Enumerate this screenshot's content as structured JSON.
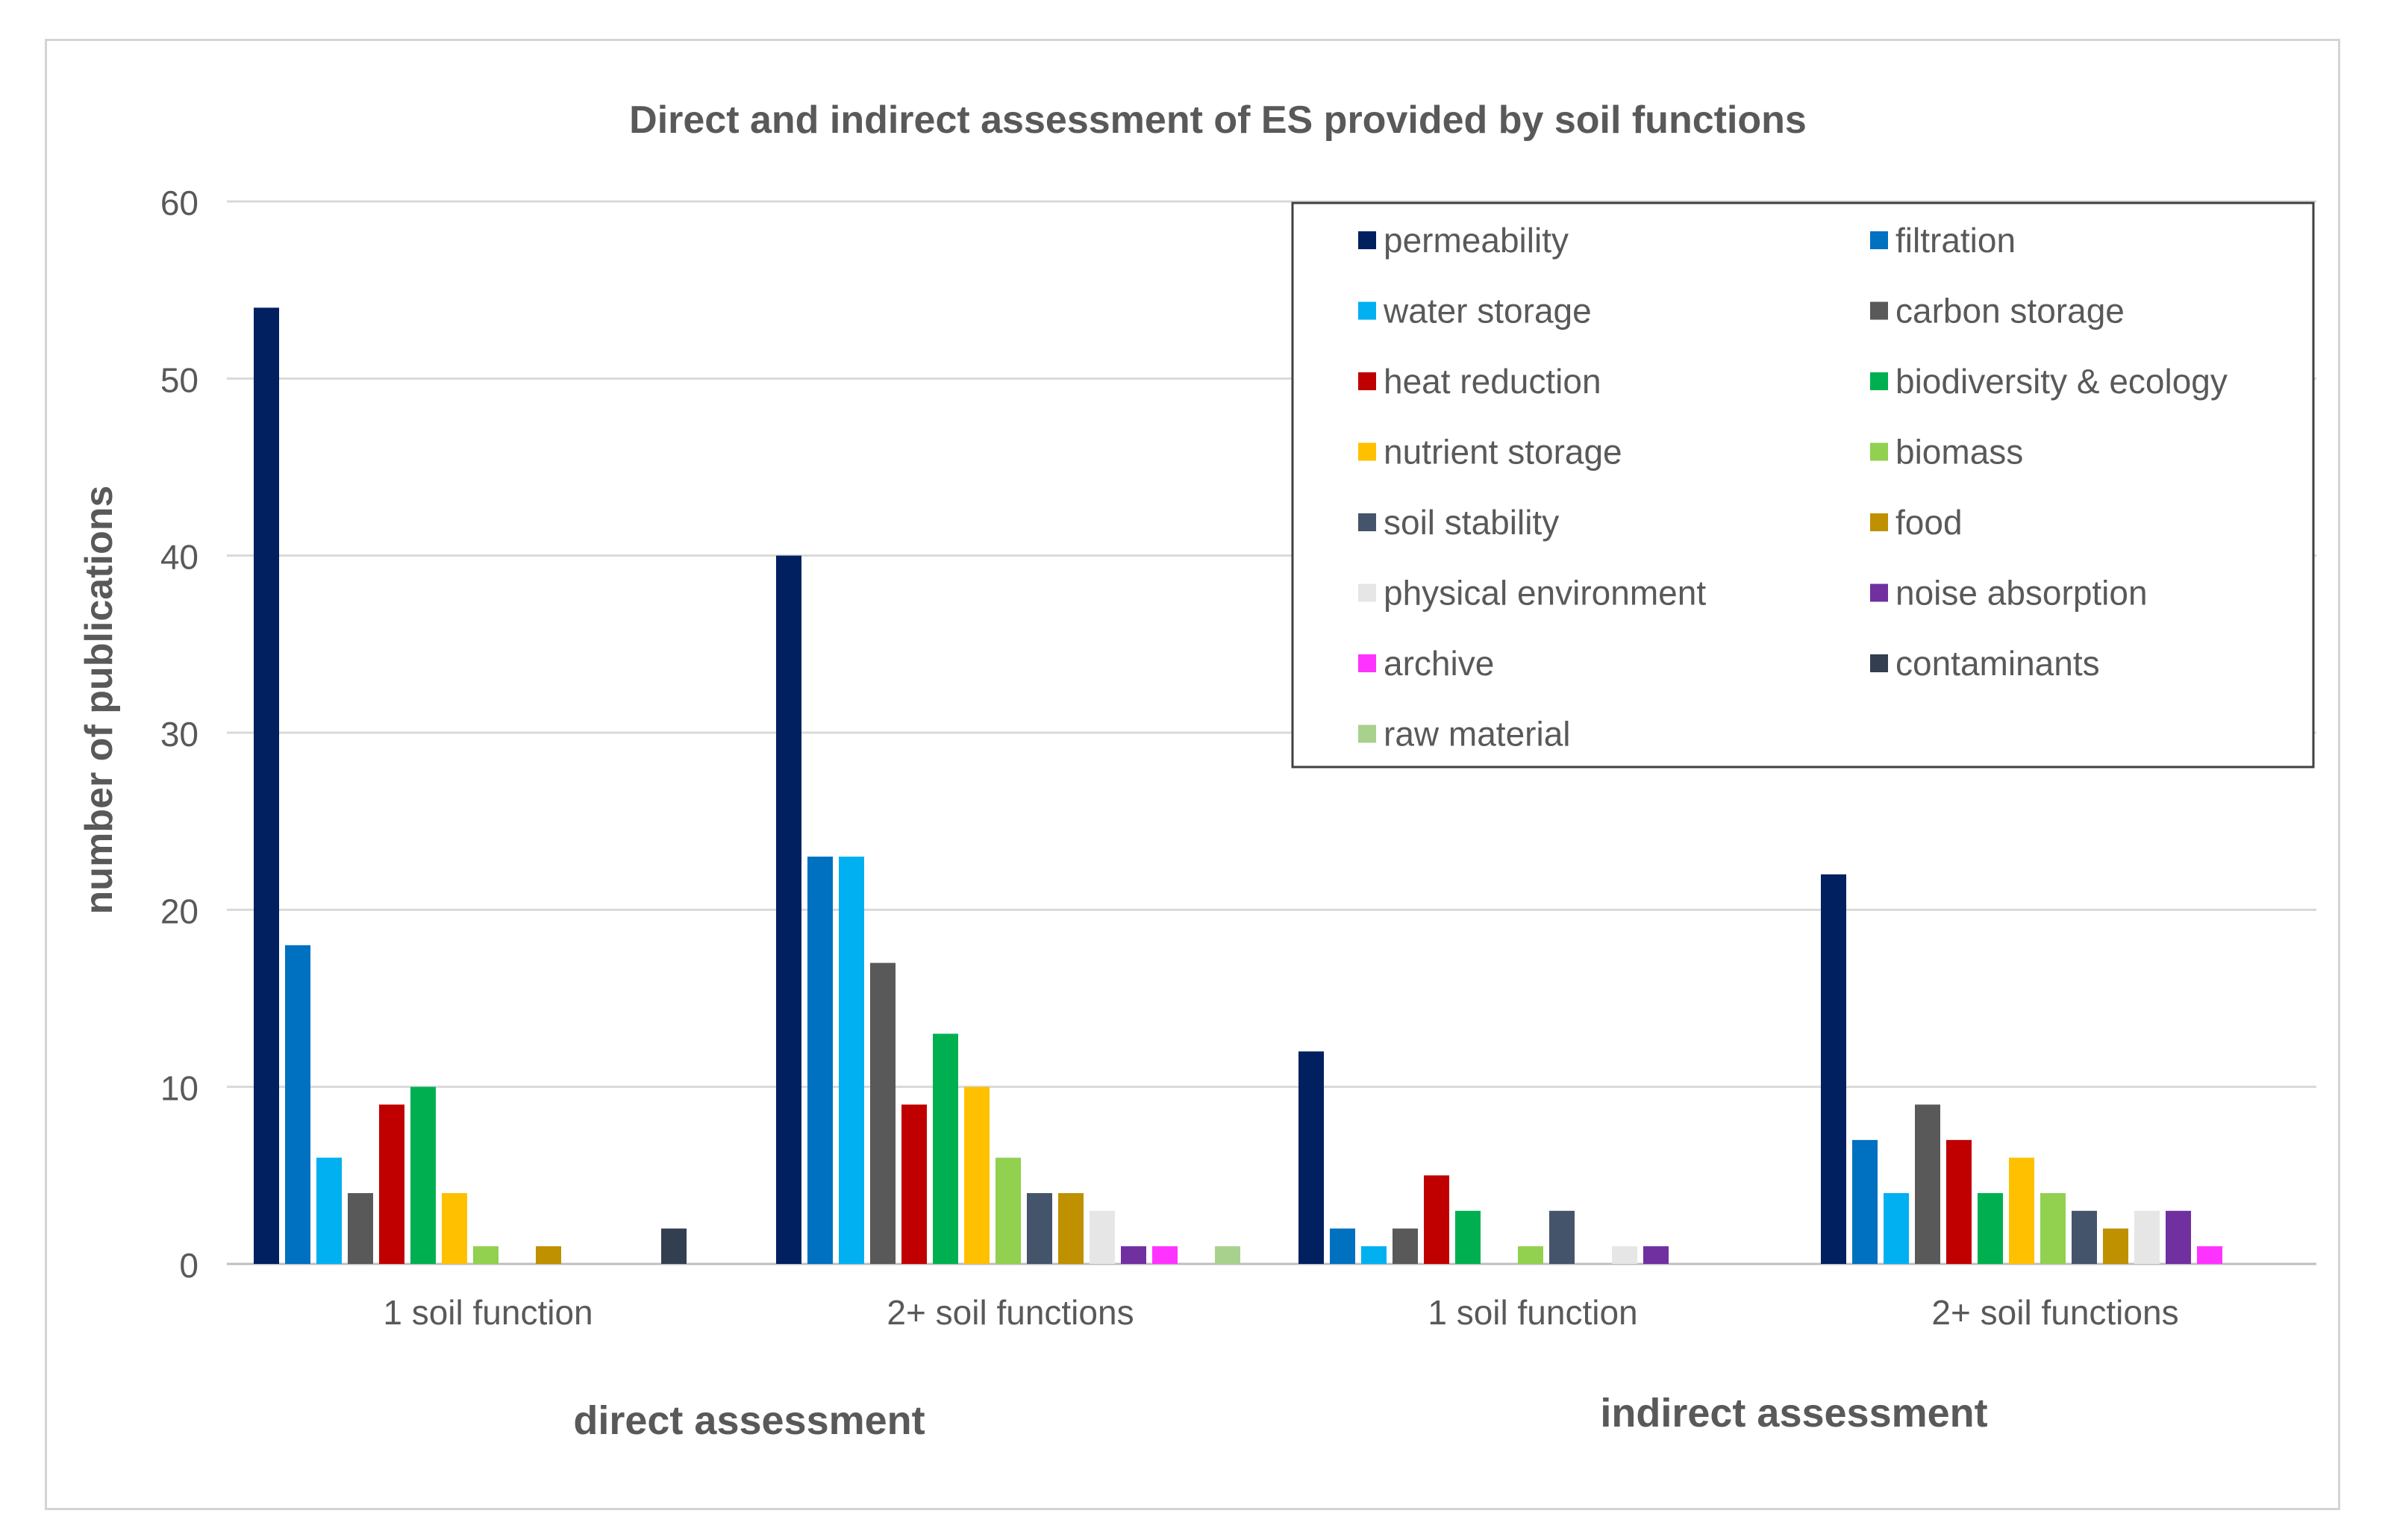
{
  "chart_data": {
    "type": "bar",
    "title": "Direct and indirect assessment of ES provided by soil functions",
    "ylabel": "number of publications",
    "ylim": [
      0,
      60
    ],
    "yticks": [
      0,
      10,
      20,
      30,
      40,
      50,
      60
    ],
    "grid": true,
    "legend_position": "top-right",
    "categories": [
      "1 soil function",
      "2+ soil functions",
      "1 soil function",
      "2+ soil functions"
    ],
    "groups": [
      {
        "label": "direct assessment",
        "categories": [
          0,
          1
        ]
      },
      {
        "label": "indirect assessment",
        "categories": [
          2,
          3
        ]
      }
    ],
    "series": [
      {
        "name": "permeability",
        "color": "#002060",
        "values": [
          54,
          40,
          12,
          22
        ]
      },
      {
        "name": "filtration",
        "color": "#0070C0",
        "values": [
          18,
          23,
          2,
          7
        ]
      },
      {
        "name": "water storage",
        "color": "#00B0F0",
        "values": [
          6,
          23,
          1,
          4
        ]
      },
      {
        "name": "carbon storage",
        "color": "#595959",
        "values": [
          4,
          17,
          2,
          9
        ]
      },
      {
        "name": "heat reduction",
        "color": "#C00000",
        "values": [
          9,
          9,
          5,
          7
        ]
      },
      {
        "name": "biodiversity & ecology",
        "color": "#00B050",
        "values": [
          10,
          13,
          3,
          4
        ]
      },
      {
        "name": "nutrient storage",
        "color": "#FFC000",
        "values": [
          4,
          10,
          0,
          6
        ]
      },
      {
        "name": "biomass",
        "color": "#92D050",
        "values": [
          1,
          6,
          1,
          4
        ]
      },
      {
        "name": "soil stability",
        "color": "#44546A",
        "values": [
          0,
          4,
          3,
          3
        ]
      },
      {
        "name": "food",
        "color": "#BF9000",
        "values": [
          1,
          4,
          0,
          2
        ]
      },
      {
        "name": "physical environment",
        "color": "#E7E6E6",
        "values": [
          0,
          3,
          1,
          3
        ]
      },
      {
        "name": "noise absorption",
        "color": "#7030A0",
        "values": [
          0,
          1,
          1,
          3
        ]
      },
      {
        "name": "archive",
        "color": "#FF33FF",
        "values": [
          0,
          1,
          0,
          1
        ]
      },
      {
        "name": "contaminants",
        "color": "#333F50",
        "values": [
          2,
          0,
          0,
          0
        ]
      },
      {
        "name": "raw material",
        "color": "#A9D18E",
        "values": [
          0,
          1,
          0,
          0
        ]
      }
    ]
  }
}
